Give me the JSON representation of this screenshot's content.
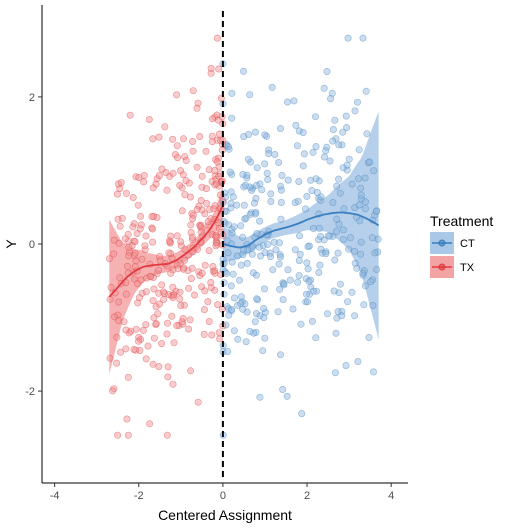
{
  "chart_data": {
    "type": "scatter",
    "xlabel": "Centered Assignment",
    "ylabel": "Y",
    "xlim": [
      -4.3,
      4.4
    ],
    "ylim": [
      -3.25,
      3.25
    ],
    "x_ticks": [
      -4,
      -2,
      0,
      2,
      4
    ],
    "y_ticks": [
      -2,
      0,
      2
    ],
    "x_tick_labels": [
      "-4",
      "-2",
      "0",
      "2",
      "4"
    ],
    "y_tick_labels": [
      "-2",
      "0",
      "2"
    ],
    "grid": false,
    "cutoff_line": {
      "x": 0,
      "style": "dashed",
      "color": "#000000"
    },
    "legend": {
      "title": "Treatment",
      "placement": "right",
      "entries": [
        {
          "label": "CT",
          "color": "#3a7fc1",
          "fill": "#a9c7e6"
        },
        {
          "label": "TX",
          "color": "#e03a3e",
          "fill": "#f4a3a5"
        }
      ]
    },
    "series": [
      {
        "name": "CT",
        "color": "#3a7fc1",
        "point_fill": "#8cb4dc",
        "band_fill": "#a9c7e6",
        "x_range": [
          0,
          3.7
        ],
        "smooth": [
          [
            0,
            0.0
          ],
          [
            0.2,
            -0.03
          ],
          [
            0.4,
            -0.05
          ],
          [
            0.6,
            -0.02
          ],
          [
            0.8,
            0.06
          ],
          [
            1.0,
            0.13
          ],
          [
            1.2,
            0.18
          ],
          [
            1.4,
            0.21
          ],
          [
            1.6,
            0.24
          ],
          [
            1.8,
            0.28
          ],
          [
            2.0,
            0.33
          ],
          [
            2.2,
            0.37
          ],
          [
            2.4,
            0.4
          ],
          [
            2.6,
            0.42
          ],
          [
            2.8,
            0.43
          ],
          [
            3.0,
            0.42
          ],
          [
            3.2,
            0.4
          ],
          [
            3.4,
            0.35
          ],
          [
            3.6,
            0.29
          ],
          [
            3.7,
            0.25
          ]
        ],
        "band_half_width": [
          [
            0,
            0.25
          ],
          [
            0.5,
            0.12
          ],
          [
            1.0,
            0.1
          ],
          [
            1.5,
            0.1
          ],
          [
            2.0,
            0.14
          ],
          [
            2.5,
            0.25
          ],
          [
            3.0,
            0.5
          ],
          [
            3.3,
            0.8
          ],
          [
            3.7,
            1.55
          ]
        ],
        "n_points": 330
      },
      {
        "name": "TX",
        "color": "#e03a3e",
        "point_fill": "#f08e91",
        "band_fill": "#f4a3a5",
        "x_range": [
          -2.7,
          0
        ],
        "smooth": [
          [
            -2.7,
            -0.72
          ],
          [
            -2.5,
            -0.59
          ],
          [
            -2.3,
            -0.46
          ],
          [
            -2.1,
            -0.37
          ],
          [
            -1.9,
            -0.31
          ],
          [
            -1.7,
            -0.29
          ],
          [
            -1.5,
            -0.28
          ],
          [
            -1.3,
            -0.27
          ],
          [
            -1.1,
            -0.22
          ],
          [
            -0.9,
            -0.14
          ],
          [
            -0.7,
            -0.05
          ],
          [
            -0.5,
            0.07
          ],
          [
            -0.3,
            0.2
          ],
          [
            -0.15,
            0.35
          ],
          [
            0,
            0.52
          ]
        ],
        "band_half_width": [
          [
            -2.7,
            1.05
          ],
          [
            -2.4,
            0.55
          ],
          [
            -2.1,
            0.3
          ],
          [
            -1.8,
            0.18
          ],
          [
            -1.5,
            0.12
          ],
          [
            -1.0,
            0.1
          ],
          [
            -0.5,
            0.1
          ],
          [
            -0.2,
            0.14
          ],
          [
            0,
            0.28
          ]
        ],
        "n_points": 330
      }
    ]
  }
}
